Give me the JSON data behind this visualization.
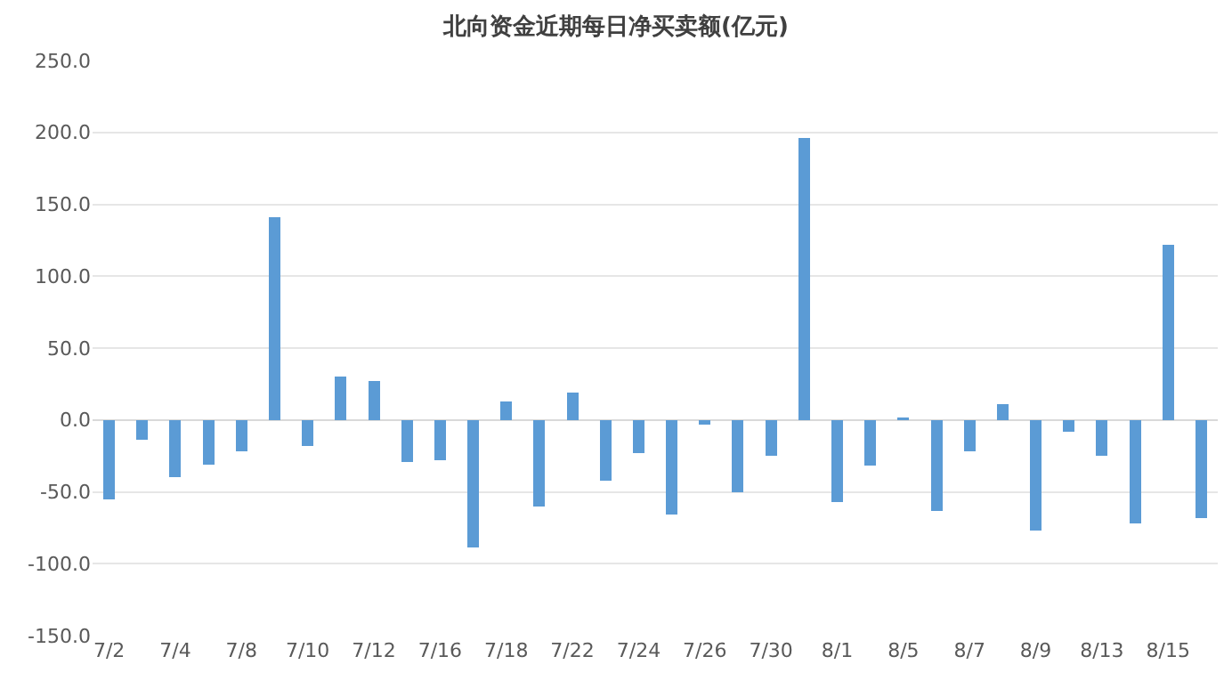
{
  "chart_data": {
    "type": "bar",
    "title": "北向资金近期每日净买卖额(亿元)",
    "categories": [
      "7/2",
      null,
      "7/4",
      null,
      "7/8",
      null,
      "7/10",
      null,
      "7/12",
      null,
      "7/16",
      null,
      "7/18",
      null,
      "7/22",
      null,
      "7/24",
      null,
      "7/26",
      null,
      "7/30",
      null,
      "8/1",
      null,
      "8/5",
      null,
      "8/7",
      null,
      "8/9",
      null,
      "8/13",
      null,
      "8/15",
      null
    ],
    "values": [
      -55,
      -14,
      -40,
      -31,
      -22,
      141,
      -18,
      30,
      27,
      -29,
      -28,
      -89,
      13,
      -60,
      19,
      -42,
      -23,
      -66,
      -3,
      -50,
      -25,
      196,
      -57,
      -32,
      1.5,
      -63,
      -22,
      11,
      -77,
      -8,
      -25,
      -72,
      122,
      -68
    ],
    "color": "#5b9bd5",
    "ylim": [
      -150,
      250
    ],
    "yticks": [
      {
        "value": -150,
        "label": "-150.0"
      },
      {
        "value": -100,
        "label": "-100.0"
      },
      {
        "value": -50,
        "label": "-50.0"
      },
      {
        "value": 0,
        "label": "0.0"
      },
      {
        "value": 50,
        "label": "50.0"
      },
      {
        "value": 100,
        "label": "100.0"
      },
      {
        "value": 150,
        "label": "150.0"
      },
      {
        "value": 200,
        "label": "200.0"
      },
      {
        "value": 250,
        "label": "250.0"
      }
    ],
    "grid": "y"
  }
}
